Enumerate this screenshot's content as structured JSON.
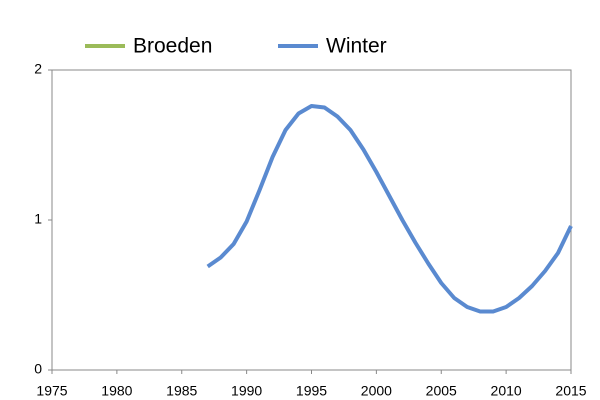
{
  "chart_data": {
    "type": "line",
    "x": [
      1987,
      1988,
      1989,
      1990,
      1991,
      1992,
      1993,
      1994,
      1995,
      1996,
      1997,
      1998,
      1999,
      2000,
      2001,
      2002,
      2003,
      2004,
      2005,
      2006,
      2007,
      2008,
      2009,
      2010,
      2011,
      2012,
      2013,
      2014,
      2015
    ],
    "series": [
      {
        "name": "Broeden",
        "color": "#9bbb59",
        "values": [
          null,
          null,
          null,
          null,
          null,
          null,
          null,
          null,
          null,
          null,
          null,
          null,
          null,
          null,
          null,
          null,
          null,
          null,
          null,
          null,
          null,
          null,
          null,
          null,
          null,
          null,
          null,
          null,
          null
        ]
      },
      {
        "name": "Winter",
        "color": "#5a8ad0",
        "values": [
          0.69,
          0.75,
          0.84,
          0.99,
          1.2,
          1.42,
          1.6,
          1.71,
          1.76,
          1.75,
          1.69,
          1.6,
          1.47,
          1.32,
          1.16,
          1.0,
          0.85,
          0.71,
          0.58,
          0.48,
          0.42,
          0.39,
          0.39,
          0.42,
          0.48,
          0.56,
          0.66,
          0.78,
          0.96
        ]
      }
    ],
    "xlim": [
      1975,
      2015
    ],
    "xticks": [
      1975,
      1980,
      1985,
      1990,
      1995,
      2000,
      2005,
      2010,
      2015
    ],
    "ylim": [
      0,
      2
    ],
    "yticks": [
      0,
      1,
      2
    ],
    "legend": "top"
  }
}
